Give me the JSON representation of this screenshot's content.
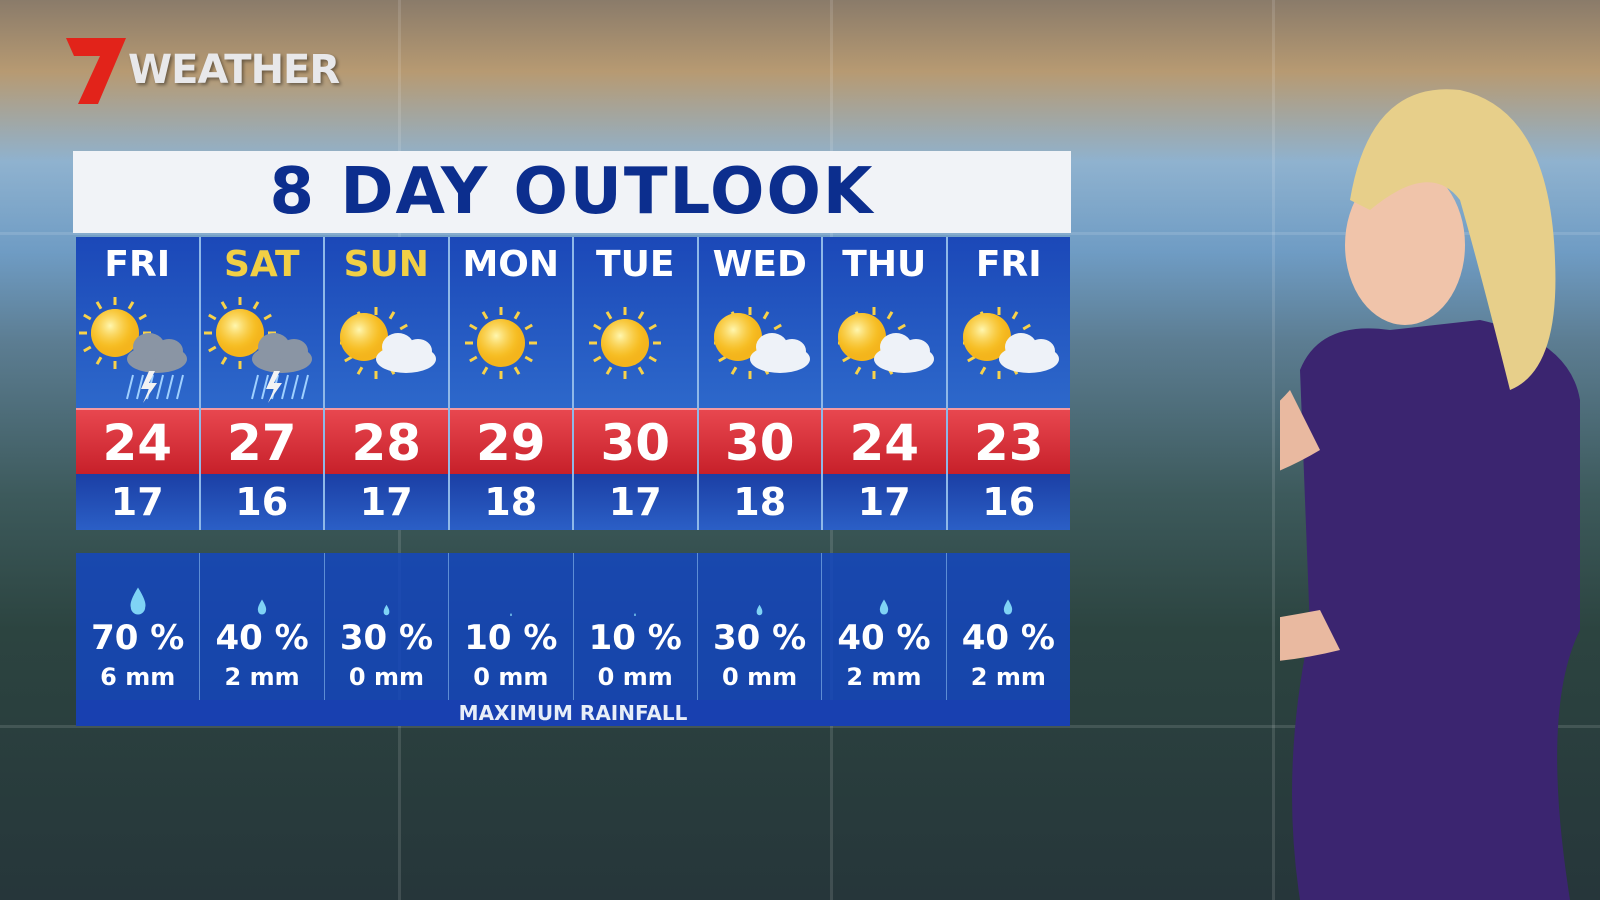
{
  "branding": {
    "logo_text": "WEATHER",
    "logo_number": "7",
    "logo_color": "#e2231a"
  },
  "outlook": {
    "title": "8 DAY OUTLOOK",
    "days": [
      {
        "day": "FRI",
        "weekend": false,
        "icon": "storm-icon",
        "high": "24",
        "low": "17",
        "rain_chance": "70 %",
        "rain_amount": "6 mm",
        "drop": "large"
      },
      {
        "day": "SAT",
        "weekend": true,
        "icon": "storm-icon",
        "high": "27",
        "low": "16",
        "rain_chance": "40 %",
        "rain_amount": "2 mm",
        "drop": "small"
      },
      {
        "day": "SUN",
        "weekend": true,
        "icon": "partly-cloudy-icon",
        "high": "28",
        "low": "17",
        "rain_chance": "30 %",
        "rain_amount": "0 mm",
        "drop": "tiny"
      },
      {
        "day": "MON",
        "weekend": false,
        "icon": "sun-icon",
        "high": "29",
        "low": "18",
        "rain_chance": "10 %",
        "rain_amount": "0 mm",
        "drop": "dot"
      },
      {
        "day": "TUE",
        "weekend": false,
        "icon": "sun-icon",
        "high": "30",
        "low": "17",
        "rain_chance": "10 %",
        "rain_amount": "0 mm",
        "drop": "dot"
      },
      {
        "day": "WED",
        "weekend": false,
        "icon": "partly-cloudy-icon",
        "high": "30",
        "low": "18",
        "rain_chance": "30 %",
        "rain_amount": "0 mm",
        "drop": "tiny"
      },
      {
        "day": "THU",
        "weekend": false,
        "icon": "partly-cloudy-icon",
        "high": "24",
        "low": "17",
        "rain_chance": "40 %",
        "rain_amount": "2 mm",
        "drop": "small"
      },
      {
        "day": "FRI",
        "weekend": false,
        "icon": "partly-cloudy-icon",
        "high": "23",
        "low": "16",
        "rain_chance": "40 %",
        "rain_amount": "2 mm",
        "drop": "small"
      }
    ],
    "rainfall_label": "MAXIMUM RAINFALL"
  },
  "colors": {
    "title": "#0c2e8e",
    "high_band": "#d8323a",
    "low_band": "#1b3fa5",
    "weekend_day": "#f1cf45",
    "weekday": "#ffffff"
  }
}
